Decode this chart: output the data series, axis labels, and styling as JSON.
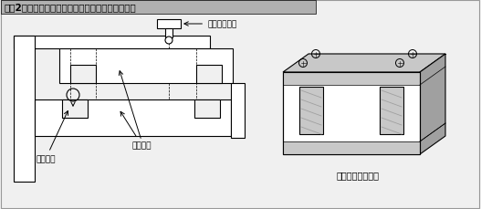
{
  "title": "【図2】平行バネを応用した微小位置調節機構の例",
  "bg_color": "#f0f0f0",
  "title_bg": "#b0b0b0",
  "white": "#ffffff",
  "light_gray": "#c8c8c8",
  "mid_gray": "#a0a0a0",
  "dark_gray": "#707070",
  "black": "#000000",
  "label_screw": "位置調整ネジ",
  "label_deform": "変形部分",
  "label_spring": "平行バネ",
  "label_block": "平行バネブロック"
}
